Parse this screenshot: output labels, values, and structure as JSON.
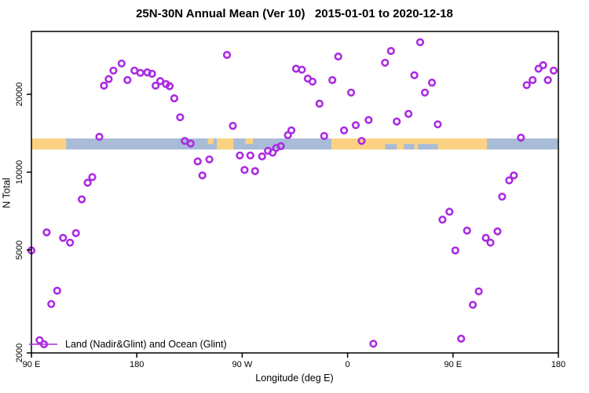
{
  "title": "25N-30N Annual Mean (Ver 10)   2015-01-01 to 2020-12-18",
  "axes": {
    "xlabel": "Longitude (deg E)",
    "ylabel": "N Total"
  },
  "legend": {
    "label": "Land (Nadir&Glint) and Ocean (Glint)"
  },
  "colors": {
    "point": "#AB2BE2",
    "land": "#FBD283",
    "ocean": "#A8BCD8",
    "axis": "#000000",
    "background": "#FFFFFF"
  },
  "chart_data": {
    "type": "scatter",
    "title": "25N-30N Annual Mean (Ver 10)   2015-01-01 to 2020-12-18",
    "xlabel": "Longitude (deg E)",
    "ylabel": "N Total",
    "x_axis": {
      "note": "degrees east continuing past 360 (axis wraps the globe 1.25 times)",
      "range": [
        90,
        540
      ],
      "tick_values": [
        90,
        180,
        270,
        360,
        450,
        540
      ],
      "tick_labels": [
        "90 E",
        "180",
        "90 W",
        "0",
        "90 E",
        "180"
      ]
    },
    "y_axis": {
      "scale": "log",
      "range": [
        2000,
        35000
      ],
      "tick_values": [
        20000,
        10000,
        5000,
        2000
      ],
      "tick_labels": [
        "20000",
        "10000",
        "5000",
        "2000"
      ]
    },
    "map_band": {
      "value_top": 13500,
      "value_bottom": 12230,
      "base_segments": [
        {
          "from": 90,
          "to": 119.6,
          "surface": "land"
        },
        {
          "from": 119.6,
          "to": 248.5,
          "surface": "ocean"
        },
        {
          "from": 248.5,
          "to": 262.4,
          "surface": "land"
        },
        {
          "from": 262.4,
          "to": 346.2,
          "surface": "ocean"
        },
        {
          "from": 346.2,
          "to": 479.0,
          "surface": "land"
        },
        {
          "from": 479.0,
          "to": 540.0,
          "surface": "ocean"
        }
      ],
      "overlay_segments": [
        {
          "from": 240.7,
          "to": 245.5,
          "surface": "land",
          "part": "top"
        },
        {
          "from": 272.8,
          "to": 279.2,
          "surface": "land",
          "part": "top"
        },
        {
          "from": 392.0,
          "to": 402.0,
          "surface": "ocean",
          "part": "bottom"
        },
        {
          "from": 408.0,
          "to": 417.0,
          "surface": "ocean",
          "part": "bottom"
        },
        {
          "from": 420.0,
          "to": 437.0,
          "surface": "ocean",
          "part": "bottom"
        }
      ]
    },
    "series": [
      {
        "name": "Land (Nadir&Glint) and Ocean (Glint)",
        "points": [
          [
            90,
            4980
          ],
          [
            97,
            2240
          ],
          [
            103,
            5850
          ],
          [
            107,
            3090
          ],
          [
            112,
            3480
          ],
          [
            117,
            5570
          ],
          [
            123,
            5340
          ],
          [
            128,
            5810
          ],
          [
            133,
            7850
          ],
          [
            138,
            9100
          ],
          [
            142,
            9570
          ],
          [
            148,
            13700
          ],
          [
            152,
            21600
          ],
          [
            156,
            22900
          ],
          [
            160,
            24700
          ],
          [
            167,
            26300
          ],
          [
            172,
            22700
          ],
          [
            178,
            24700
          ],
          [
            183,
            24200
          ],
          [
            189,
            24300
          ],
          [
            193,
            24000
          ],
          [
            196,
            21600
          ],
          [
            200,
            22500
          ],
          [
            205,
            21900
          ],
          [
            208,
            21500
          ],
          [
            212,
            19300
          ],
          [
            217,
            16300
          ],
          [
            221,
            13200
          ],
          [
            226,
            12900
          ],
          [
            232,
            11000
          ],
          [
            236,
            9710
          ],
          [
            242,
            11200
          ],
          [
            257,
            28400
          ],
          [
            262,
            15100
          ],
          [
            268,
            11600
          ],
          [
            272,
            10200
          ],
          [
            277,
            11600
          ],
          [
            281,
            10100
          ],
          [
            287,
            11500
          ],
          [
            292,
            12100
          ],
          [
            296,
            11900
          ],
          [
            299,
            12400
          ],
          [
            303,
            12600
          ],
          [
            309,
            13900
          ],
          [
            312,
            14500
          ],
          [
            316,
            25100
          ],
          [
            321,
            24900
          ],
          [
            326,
            23000
          ],
          [
            330,
            22400
          ],
          [
            336,
            18400
          ],
          [
            340,
            13800
          ],
          [
            347,
            22700
          ],
          [
            352,
            28000
          ],
          [
            357,
            14500
          ],
          [
            363,
            20300
          ],
          [
            367,
            15200
          ],
          [
            372,
            13200
          ],
          [
            378,
            15900
          ],
          [
            382,
            2170
          ],
          [
            392,
            26500
          ],
          [
            397,
            29400
          ],
          [
            402,
            15700
          ],
          [
            412,
            16800
          ],
          [
            417,
            23700
          ],
          [
            422,
            31800
          ],
          [
            426,
            20300
          ],
          [
            432,
            22200
          ],
          [
            437,
            15300
          ],
          [
            441,
            6550
          ],
          [
            447,
            7030
          ],
          [
            452,
            4980
          ],
          [
            457,
            2270
          ],
          [
            462,
            5940
          ],
          [
            467,
            3070
          ],
          [
            472,
            3460
          ],
          [
            478,
            5570
          ],
          [
            482,
            5340
          ],
          [
            488,
            5900
          ],
          [
            492,
            8040
          ],
          [
            498,
            9290
          ],
          [
            502,
            9710
          ],
          [
            508,
            13600
          ],
          [
            513,
            21700
          ],
          [
            518,
            22700
          ],
          [
            523,
            25100
          ],
          [
            527,
            25900
          ],
          [
            531,
            22700
          ],
          [
            536,
            24700
          ]
        ]
      }
    ],
    "legend": {
      "position": "bottom-left",
      "entries": [
        "Land (Nadir&Glint) and Ocean (Glint)"
      ]
    }
  }
}
